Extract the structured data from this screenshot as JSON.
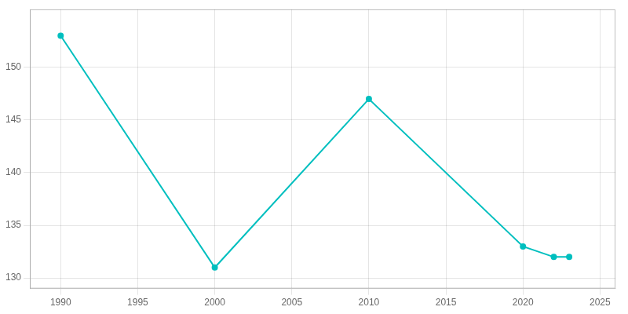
{
  "chart_data": {
    "type": "line",
    "x": [
      1990,
      2000,
      2010,
      2020,
      2022,
      2023
    ],
    "values": [
      153,
      131,
      147,
      133,
      132,
      132
    ],
    "color": "#00BFBF",
    "marker": "o",
    "xlim": [
      1988,
      2026
    ],
    "ylim": [
      129,
      155.5
    ],
    "xticks": [
      1990,
      1995,
      2000,
      2005,
      2010,
      2015,
      2020,
      2025
    ],
    "yticks": [
      130,
      135,
      140,
      145,
      150
    ],
    "grid": true
  }
}
